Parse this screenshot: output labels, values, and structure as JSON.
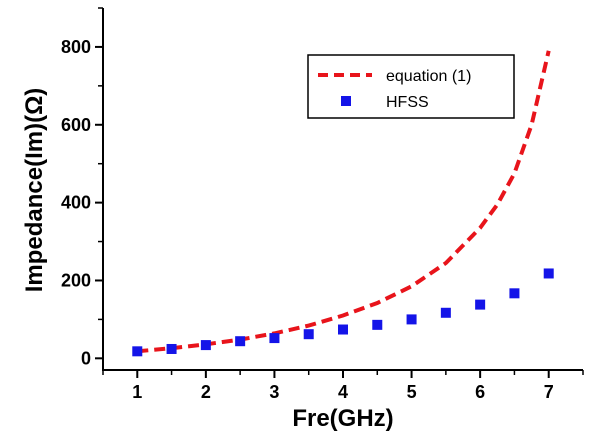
{
  "chart_data": {
    "type": "line",
    "xlabel": "Fre(GHz)",
    "ylabel": "Impedance(Im)(Ω)",
    "xlim": [
      0.5,
      7.5
    ],
    "ylim": [
      -30,
      900
    ],
    "xticks": [
      1,
      2,
      3,
      4,
      5,
      6,
      7
    ],
    "yticks": [
      0,
      200,
      400,
      600,
      800
    ],
    "legend_position": "top-right",
    "series": [
      {
        "name": "equation (1)",
        "style": "dashed-line",
        "color": "#e8141b",
        "x": [
          1.0,
          1.5,
          2.0,
          2.5,
          3.0,
          3.5,
          4.0,
          4.5,
          5.0,
          5.5,
          6.0,
          6.25,
          6.5,
          6.75,
          7.0
        ],
        "y": [
          18,
          26,
          36,
          48,
          64,
          84,
          110,
          142,
          185,
          245,
          335,
          395,
          475,
          600,
          790
        ]
      },
      {
        "name": "HFSS",
        "style": "square-marker",
        "color": "#1414e8",
        "x": [
          1.0,
          1.5,
          2.0,
          2.5,
          3.0,
          3.5,
          4.0,
          4.5,
          5.0,
          5.5,
          6.0,
          6.5,
          7.0
        ],
        "y": [
          18,
          24,
          34,
          44,
          52,
          62,
          74,
          86,
          100,
          117,
          138,
          167,
          218
        ]
      }
    ]
  }
}
